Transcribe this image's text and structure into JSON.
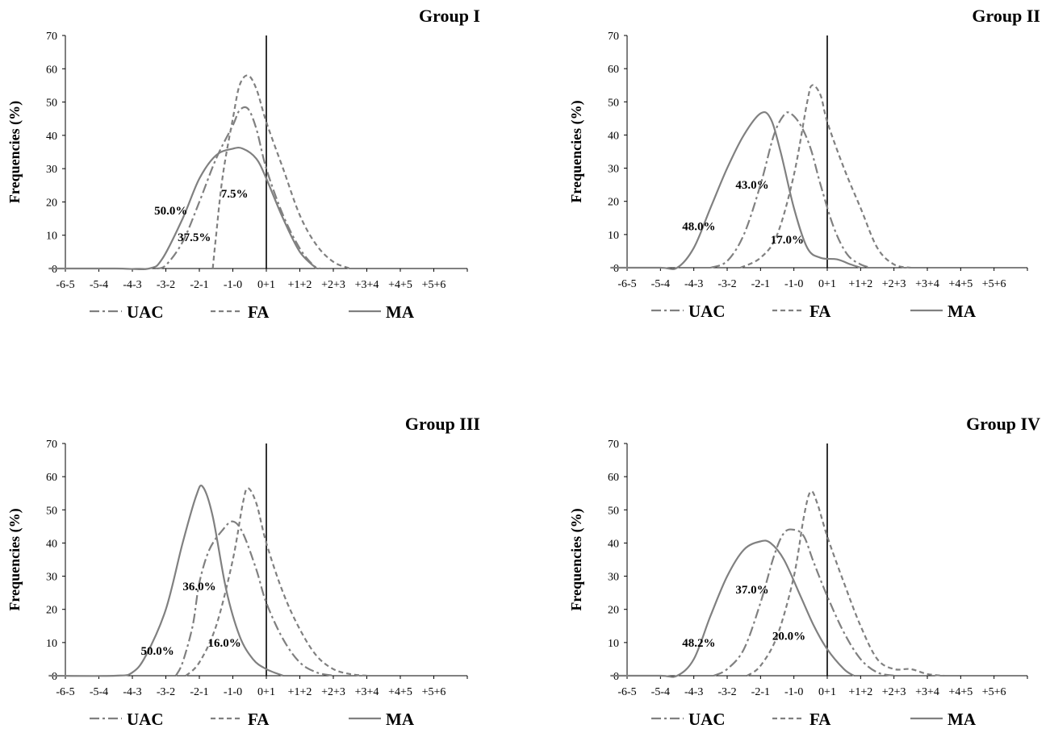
{
  "figure": {
    "ylabel": "Frequencies (%)",
    "y_ticks": [
      0,
      10,
      20,
      30,
      40,
      50,
      60,
      70
    ],
    "x_ticks": [
      "-6-5",
      "-5-4",
      "-4-3",
      "-3-2",
      "-2-1",
      "-1-0",
      "0+1",
      "+1+2",
      "+2+3",
      "+3+4",
      "+4+5",
      "+5+6"
    ],
    "reference_line_x": "0",
    "colors": {
      "line": "#808080",
      "axis": "#000000",
      "text": "#000000"
    },
    "legend": [
      {
        "name": "UAC",
        "dash": "dashdot"
      },
      {
        "name": "FA",
        "dash": "dash"
      },
      {
        "name": "MA",
        "dash": "solid"
      }
    ]
  },
  "chart_data": [
    {
      "type": "line",
      "title": "Group I",
      "ylabel": "Frequencies (%)",
      "ylim": [
        0,
        70
      ],
      "categories": [
        "-6-5",
        "-5-4",
        "-4-3",
        "-3-2",
        "-2-1",
        "-1-0",
        "0+1",
        "+1+2",
        "+2+3",
        "+3+4",
        "+4+5",
        "+5+6"
      ],
      "series": [
        {
          "name": "UAC",
          "points": [
            [
              -3.3,
              0
            ],
            [
              -3.0,
              1
            ],
            [
              -2.5,
              8
            ],
            [
              -2.0,
              20
            ],
            [
              -1.5,
              33
            ],
            [
              -1.0,
              43
            ],
            [
              -0.8,
              47.5
            ],
            [
              -0.55,
              48
            ],
            [
              -0.3,
              42
            ],
            [
              0.0,
              30
            ],
            [
              0.5,
              16
            ],
            [
              1.0,
              6
            ],
            [
              1.4,
              1
            ],
            [
              1.6,
              0
            ]
          ]
        },
        {
          "name": "FA",
          "points": [
            [
              -1.6,
              0
            ],
            [
              -1.5,
              10
            ],
            [
              -1.3,
              28
            ],
            [
              -1.0,
              45
            ],
            [
              -0.8,
              55
            ],
            [
              -0.55,
              58
            ],
            [
              -0.3,
              54
            ],
            [
              0.0,
              44
            ],
            [
              0.5,
              30
            ],
            [
              1.0,
              16
            ],
            [
              1.5,
              7
            ],
            [
              2.0,
              2
            ],
            [
              2.5,
              0
            ]
          ]
        },
        {
          "name": "MA",
          "points": [
            [
              -6.5,
              0
            ],
            [
              -4.5,
              0
            ],
            [
              -3.5,
              0
            ],
            [
              -3.1,
              3
            ],
            [
              -2.5,
              15
            ],
            [
              -2.0,
              27
            ],
            [
              -1.5,
              34
            ],
            [
              -1.0,
              36
            ],
            [
              -0.7,
              36
            ],
            [
              -0.3,
              33
            ],
            [
              0.0,
              27
            ],
            [
              0.5,
              15
            ],
            [
              1.0,
              5
            ],
            [
              1.5,
              0
            ]
          ]
        }
      ],
      "annotations": [
        {
          "text": "50.0%",
          "x": -2.85,
          "y": 17.5
        },
        {
          "text": "37.5%",
          "x": -2.15,
          "y": 9.5
        },
        {
          "text": "7.5%",
          "x": -0.95,
          "y": 22.5
        }
      ]
    },
    {
      "type": "line",
      "title": "Group II",
      "ylabel": "Frequencies (%)",
      "ylim": [
        0,
        70
      ],
      "categories": [
        "-6-5",
        "-5-4",
        "-4-3",
        "-3-2",
        "-2-1",
        "-1-0",
        "0+1",
        "+1+2",
        "+2+3",
        "+3+4",
        "+4+5",
        "+5+6"
      ],
      "series": [
        {
          "name": "UAC",
          "points": [
            [
              -3.5,
              0
            ],
            [
              -3.0,
              2
            ],
            [
              -2.5,
              10
            ],
            [
              -2.0,
              25
            ],
            [
              -1.6,
              40
            ],
            [
              -1.3,
              46
            ],
            [
              -1.1,
              46.5
            ],
            [
              -0.8,
              43
            ],
            [
              -0.5,
              36
            ],
            [
              -0.2,
              25
            ],
            [
              0.2,
              12
            ],
            [
              0.6,
              4
            ],
            [
              1.0,
              1
            ],
            [
              1.3,
              0
            ]
          ]
        },
        {
          "name": "FA",
          "points": [
            [
              -2.6,
              0
            ],
            [
              -2.0,
              3
            ],
            [
              -1.5,
              10
            ],
            [
              -1.0,
              28
            ],
            [
              -0.6,
              50
            ],
            [
              -0.45,
              55
            ],
            [
              -0.2,
              52
            ],
            [
              0.0,
              44
            ],
            [
              0.5,
              30
            ],
            [
              1.0,
              18
            ],
            [
              1.5,
              6
            ],
            [
              2.0,
              1
            ],
            [
              2.5,
              0
            ]
          ]
        },
        {
          "name": "MA",
          "points": [
            [
              -6.5,
              0
            ],
            [
              -5.0,
              0
            ],
            [
              -4.5,
              0
            ],
            [
              -4.0,
              6
            ],
            [
              -3.5,
              18
            ],
            [
              -3.0,
              30
            ],
            [
              -2.5,
              40
            ],
            [
              -2.0,
              46.5
            ],
            [
              -1.7,
              45
            ],
            [
              -1.4,
              35
            ],
            [
              -1.0,
              18
            ],
            [
              -0.6,
              6
            ],
            [
              -0.2,
              3
            ],
            [
              0.3,
              2.5
            ],
            [
              0.7,
              1
            ],
            [
              1.0,
              0
            ]
          ]
        }
      ],
      "annotations": [
        {
          "text": "48.0%",
          "x": -3.85,
          "y": 12.5
        },
        {
          "text": "43.0%",
          "x": -2.25,
          "y": 25
        },
        {
          "text": "17.0%",
          "x": -1.2,
          "y": 8.5
        }
      ]
    },
    {
      "type": "line",
      "title": "Group III",
      "ylabel": "Frequencies (%)",
      "ylim": [
        0,
        70
      ],
      "categories": [
        "-6-5",
        "-5-4",
        "-4-3",
        "-3-2",
        "-2-1",
        "-1-0",
        "0+1",
        "+1+2",
        "+2+3",
        "+3+4",
        "+4+5",
        "+5+6"
      ],
      "series": [
        {
          "name": "UAC",
          "points": [
            [
              -2.7,
              0
            ],
            [
              -2.5,
              4
            ],
            [
              -2.2,
              15
            ],
            [
              -2.0,
              28
            ],
            [
              -1.7,
              38
            ],
            [
              -1.3,
              44
            ],
            [
              -1.0,
              46.5
            ],
            [
              -0.7,
              43
            ],
            [
              -0.3,
              32
            ],
            [
              0.0,
              22
            ],
            [
              0.5,
              11
            ],
            [
              1.0,
              4
            ],
            [
              1.5,
              1
            ],
            [
              2.0,
              0
            ]
          ]
        },
        {
          "name": "FA",
          "points": [
            [
              -2.4,
              0
            ],
            [
              -2.0,
              4
            ],
            [
              -1.5,
              15
            ],
            [
              -1.0,
              35
            ],
            [
              -0.7,
              52
            ],
            [
              -0.55,
              56.5
            ],
            [
              -0.3,
              52
            ],
            [
              0.0,
              40
            ],
            [
              0.5,
              25
            ],
            [
              1.0,
              14
            ],
            [
              1.5,
              6
            ],
            [
              2.0,
              2
            ],
            [
              2.5,
              0.5
            ],
            [
              3.0,
              0
            ]
          ]
        },
        {
          "name": "MA",
          "points": [
            [
              -6.5,
              0
            ],
            [
              -4.5,
              0
            ],
            [
              -4.0,
              1
            ],
            [
              -3.6,
              6
            ],
            [
              -3.0,
              20
            ],
            [
              -2.5,
              40
            ],
            [
              -2.1,
              54
            ],
            [
              -1.9,
              57
            ],
            [
              -1.6,
              48
            ],
            [
              -1.2,
              26
            ],
            [
              -0.8,
              12
            ],
            [
              -0.4,
              5
            ],
            [
              0.0,
              2
            ],
            [
              0.5,
              0
            ]
          ]
        }
      ],
      "annotations": [
        {
          "text": "50.0%",
          "x": -3.25,
          "y": 7.5
        },
        {
          "text": "36.0%",
          "x": -2.0,
          "y": 27
        },
        {
          "text": "16.0%",
          "x": -1.25,
          "y": 10
        }
      ]
    },
    {
      "type": "line",
      "title": "Group IV",
      "ylabel": "Frequencies (%)",
      "ylim": [
        0,
        70
      ],
      "categories": [
        "-6-5",
        "-5-4",
        "-4-3",
        "-3-2",
        "-2-1",
        "-1-0",
        "0+1",
        "+1+2",
        "+2+3",
        "+3+4",
        "+4+5",
        "+5+6"
      ],
      "series": [
        {
          "name": "UAC",
          "points": [
            [
              -3.4,
              0
            ],
            [
              -3.0,
              2
            ],
            [
              -2.5,
              8
            ],
            [
              -2.0,
              22
            ],
            [
              -1.6,
              36
            ],
            [
              -1.3,
              43
            ],
            [
              -1.0,
              44
            ],
            [
              -0.7,
              42
            ],
            [
              -0.4,
              34
            ],
            [
              0.0,
              24
            ],
            [
              0.5,
              13
            ],
            [
              1.0,
              5
            ],
            [
              1.5,
              1
            ],
            [
              2.0,
              0
            ]
          ]
        },
        {
          "name": "FA",
          "points": [
            [
              -2.4,
              0
            ],
            [
              -2.0,
              3
            ],
            [
              -1.5,
              12
            ],
            [
              -1.0,
              30
            ],
            [
              -0.7,
              48
            ],
            [
              -0.5,
              55.5
            ],
            [
              -0.3,
              52
            ],
            [
              0.0,
              42
            ],
            [
              0.5,
              28
            ],
            [
              1.0,
              15
            ],
            [
              1.5,
              5
            ],
            [
              2.0,
              2
            ],
            [
              2.5,
              2
            ],
            [
              3.0,
              0.5
            ],
            [
              3.5,
              0
            ]
          ]
        },
        {
          "name": "MA",
          "points": [
            [
              -6.5,
              0
            ],
            [
              -5.0,
              0
            ],
            [
              -4.5,
              0
            ],
            [
              -4.0,
              5
            ],
            [
              -3.5,
              18
            ],
            [
              -3.0,
              30
            ],
            [
              -2.5,
              38
            ],
            [
              -2.0,
              40.5
            ],
            [
              -1.7,
              40
            ],
            [
              -1.3,
              35
            ],
            [
              -0.8,
              24
            ],
            [
              -0.4,
              15
            ],
            [
              0.0,
              8
            ],
            [
              0.5,
              2
            ],
            [
              0.8,
              0
            ]
          ]
        }
      ],
      "annotations": [
        {
          "text": "48.2%",
          "x": -3.85,
          "y": 10
        },
        {
          "text": "37.0%",
          "x": -2.25,
          "y": 26
        },
        {
          "text": "20.0%",
          "x": -1.15,
          "y": 12
        }
      ]
    }
  ]
}
